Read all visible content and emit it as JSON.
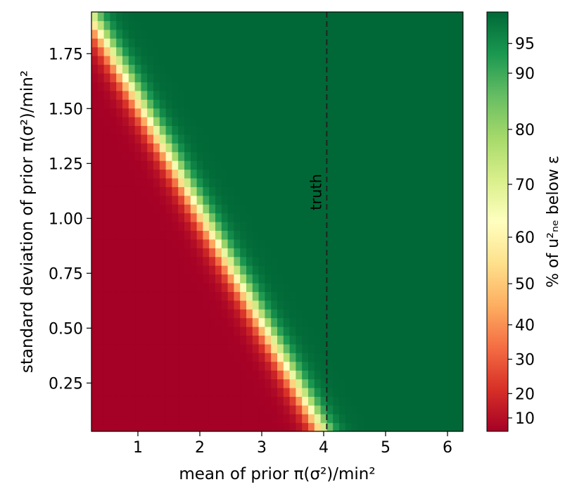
{
  "chart_data": {
    "type": "heatmap",
    "title": "",
    "xlabel": "mean of prior π(σ²)/min²",
    "ylabel": "standard deviation of prior π(σ²)/min²",
    "xlim": [
      0.25,
      6.25
    ],
    "ylim": [
      0.03,
      1.94
    ],
    "x_ticks": [
      1,
      2,
      3,
      4,
      5,
      6
    ],
    "x_tick_labels": [
      "1",
      "2",
      "3",
      "4",
      "5",
      "6"
    ],
    "y_ticks": [
      0.25,
      0.5,
      0.75,
      1.0,
      1.25,
      1.5,
      1.75
    ],
    "y_tick_labels": [
      "0.25",
      "0.50",
      "0.75",
      "1.00",
      "1.25",
      "1.50",
      "1.75"
    ],
    "z_description": "percentage of samples below epsilon; transitions from ~5% (lower-left) to ~100% (upper-right) along a diagonal band from (0.25, 1.9) to (3.9, 0.05)",
    "transition_line": {
      "from": [
        0.25,
        1.92
      ],
      "to": [
        3.95,
        0.05
      ],
      "width_x": 0.6
    },
    "zlim": [
      5,
      100
    ],
    "grid": false,
    "colormap": "RdYlGn",
    "colorbar": {
      "label": "% of u²ₙₑ below ε",
      "ticks": [
        10,
        20,
        30,
        40,
        50,
        60,
        70,
        80,
        90,
        95
      ],
      "tick_labels": [
        "10",
        "20",
        "30",
        "40",
        "50",
        "60",
        "70",
        "80",
        "90",
        "95"
      ]
    },
    "annotations": [
      {
        "type": "vline",
        "x": 4.05,
        "style": "dashed",
        "color": "#000000",
        "label": "truth"
      }
    ]
  }
}
